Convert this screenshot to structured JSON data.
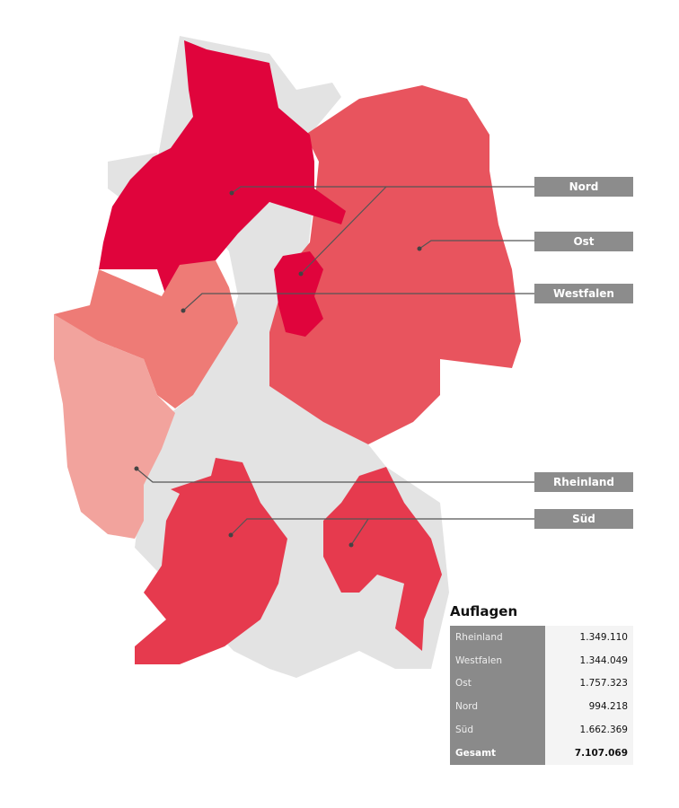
{
  "regions": [
    {
      "id": "nord",
      "label": "Nord",
      "value": "994.218",
      "color": "#e0043c"
    },
    {
      "id": "ost",
      "label": "Ost",
      "value": "1.757.323",
      "color": "#e8545e"
    },
    {
      "id": "westfalen",
      "label": "Westfalen",
      "value": "1.344.049",
      "color": "#ee7b76"
    },
    {
      "id": "rheinland",
      "label": "Rheinland",
      "value": "1.349.110",
      "color": "#f2a39d"
    },
    {
      "id": "sued",
      "label": "Süd",
      "value": "1.662.369",
      "color": "#e63a4e"
    }
  ],
  "other_area_color": "#e3e3e3",
  "table": {
    "title": "Auflagen",
    "rows": [
      {
        "label": "Rheinland",
        "value": "1.349.110"
      },
      {
        "label": "Westfalen",
        "value": "1.344.049"
      },
      {
        "label": "Ost",
        "value": "1.757.323"
      },
      {
        "label": "Nord",
        "value": "994.218"
      },
      {
        "label": "Süd",
        "value": "1.662.369"
      }
    ],
    "total": {
      "label": "Gesamt",
      "value": "7.107.069"
    }
  }
}
